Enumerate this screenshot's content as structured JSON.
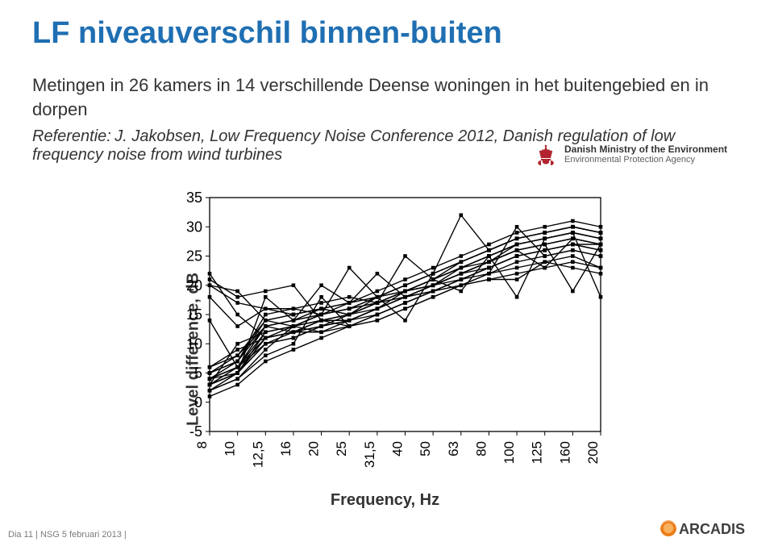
{
  "title": {
    "text": "LF niveauverschil binnen-buiten",
    "color": "#1f6fb2"
  },
  "body": {
    "text": "Metingen in 26 kamers in 14 verschillende Deense woningen in het buitengebied en in dorpen"
  },
  "reference": {
    "label": "Referentie:",
    "rest": "J. Jakobsen, Low Frequency Noise Conference 2012, Danish regulation of low frequency noise from wind turbines"
  },
  "ministry": {
    "line1": "Danish Ministry of the Environment",
    "line2": "Environmental Protection Agency",
    "crown_color": "#b22530"
  },
  "chart": {
    "type": "line",
    "y_label": "Level difference, dB",
    "x_label": "Frequency, Hz",
    "y_min": -5,
    "y_max": 35,
    "y_step": 5,
    "x_categories": [
      "8",
      "10",
      "12,5",
      "16",
      "20",
      "25",
      "31,5",
      "40",
      "50",
      "63",
      "80",
      "100",
      "125",
      "160",
      "200"
    ],
    "axis_color": "#000000",
    "line_color": "#000000",
    "marker_color": "#000000",
    "background": "#ffffff",
    "line_width": 1.4,
    "marker_size": 2.3,
    "series": [
      [
        4,
        5,
        18,
        14,
        16,
        15,
        17,
        19,
        20,
        23,
        24,
        27,
        28,
        29,
        28
      ],
      [
        3,
        10,
        12,
        13,
        15,
        16,
        18,
        19,
        20,
        22,
        24,
        26,
        27,
        28,
        27
      ],
      [
        5,
        8,
        14,
        13,
        14,
        14,
        16,
        19,
        21,
        24,
        26,
        28,
        29,
        30,
        29
      ],
      [
        3,
        6,
        13,
        12,
        14,
        13,
        15,
        17,
        19,
        21,
        23,
        25,
        26,
        27,
        26
      ],
      [
        20,
        19,
        14,
        15,
        16,
        17,
        22,
        18,
        20,
        22,
        23,
        25,
        26,
        27,
        27
      ],
      [
        4,
        7,
        15,
        16,
        17,
        18,
        17,
        19,
        21,
        23,
        25,
        27,
        28,
        29,
        28
      ],
      [
        2,
        5,
        10,
        11,
        13,
        14,
        15,
        17,
        19,
        21,
        23,
        25,
        26,
        27,
        26
      ],
      [
        6,
        9,
        11,
        12,
        12,
        13,
        14,
        16,
        18,
        20,
        22,
        30,
        25,
        26,
        25
      ],
      [
        1,
        3,
        7,
        9,
        11,
        13,
        14,
        16,
        18,
        20,
        22,
        24,
        25,
        26,
        25
      ],
      [
        20,
        17,
        16,
        15,
        16,
        17,
        18,
        19,
        20,
        21,
        22,
        23,
        24,
        25,
        23
      ],
      [
        21,
        18,
        19,
        20,
        14,
        15,
        17,
        18,
        19,
        20,
        21,
        22,
        23,
        24,
        23
      ],
      [
        22,
        15,
        11,
        12,
        13,
        14,
        16,
        18,
        20,
        22,
        24,
        26,
        27,
        28,
        27
      ],
      [
        18,
        13,
        16,
        16,
        15,
        16,
        17,
        18,
        19,
        20,
        21,
        21,
        24,
        23,
        22
      ],
      [
        3,
        5,
        11,
        13,
        15,
        17,
        19,
        21,
        23,
        25,
        27,
        29,
        30,
        31,
        30
      ],
      [
        4,
        6,
        13,
        14,
        20,
        17,
        18,
        20,
        22,
        24,
        26,
        28,
        29,
        30,
        29
      ],
      [
        2,
        4,
        9,
        13,
        12,
        14,
        16,
        18,
        20,
        22,
        24,
        26,
        27,
        28,
        27
      ],
      [
        5,
        7,
        14,
        15,
        16,
        15,
        18,
        20,
        22,
        24,
        26,
        28,
        29,
        30,
        29
      ],
      [
        3,
        5,
        12,
        13,
        14,
        15,
        17,
        19,
        21,
        23,
        25,
        27,
        28,
        29,
        28
      ],
      [
        14,
        6,
        10,
        11,
        13,
        14,
        16,
        18,
        20,
        22,
        24,
        26,
        23,
        28,
        27
      ],
      [
        4,
        6,
        11,
        12,
        14,
        15,
        17,
        19,
        21,
        23,
        25,
        18,
        28,
        29,
        28
      ],
      [
        3,
        5,
        10,
        12,
        13,
        15,
        16,
        18,
        20,
        22,
        24,
        26,
        27,
        19,
        27
      ],
      [
        5,
        7,
        13,
        14,
        15,
        16,
        17,
        19,
        21,
        19,
        25,
        27,
        28,
        29,
        18
      ],
      [
        4,
        6,
        12,
        13,
        15,
        16,
        18,
        14,
        22,
        24,
        26,
        28,
        29,
        30,
        29
      ],
      [
        2,
        4,
        8,
        10,
        18,
        13,
        15,
        17,
        19,
        21,
        23,
        25,
        26,
        27,
        26
      ],
      [
        6,
        8,
        13,
        14,
        15,
        23,
        18,
        20,
        22,
        32,
        26,
        28,
        29,
        30,
        29
      ],
      [
        3,
        5,
        11,
        12,
        14,
        15,
        17,
        25,
        21,
        23,
        25,
        27,
        28,
        29,
        28
      ]
    ]
  },
  "footer": {
    "text": "Dia 11  | NSG 5 februari 2013 |"
  },
  "arcadis": {
    "brand": "ARCADIS",
    "orb_outer": "#ed7d1a",
    "orb_inner": "#f6b25f",
    "text_color": "#3f3f3f"
  }
}
